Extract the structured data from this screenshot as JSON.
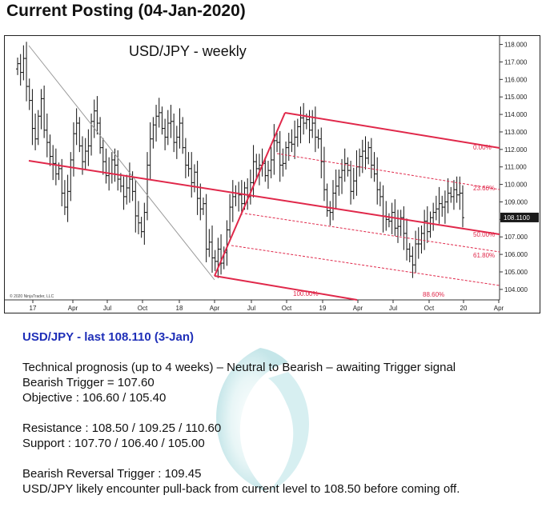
{
  "page": {
    "title": "Current Posting (04-Jan-2020)"
  },
  "chart_data": {
    "type": "ohlc",
    "title": "USD/JPY - weekly",
    "credit": "© 2020 NinjaTrader, LLC",
    "x_ticks": [
      "17",
      "Apr",
      "Jul",
      "Oct",
      "18",
      "Apr",
      "Jul",
      "Oct",
      "19",
      "Apr",
      "Jul",
      "Oct",
      "20",
      "Apr"
    ],
    "y_ticks": [
      "104.000",
      "105.000",
      "106.000",
      "107.000",
      "108.000",
      "109.000",
      "110.000",
      "111.000",
      "112.000",
      "113.000",
      "114.000",
      "115.000",
      "116.000",
      "117.000",
      "118.000"
    ],
    "ylim": [
      103.4,
      118.3
    ],
    "last_price": "108.1100",
    "last_value": 108.11,
    "fib_labels": [
      "0.00%",
      "23.60%",
      "50.00%",
      "61.80%",
      "100.00%",
      "88.60%"
    ],
    "colors": {
      "bars": "#111111",
      "pitchfork": "#e0284a",
      "price_box": "#1a1a1a"
    },
    "bars_weekly_close": [
      116.9,
      116.4,
      117.2,
      115.6,
      114.8,
      113.2,
      112.6,
      113.9,
      114.9,
      113.1,
      112.4,
      111.6,
      111.2,
      110.6,
      110.9,
      109.5,
      108.7,
      109.6,
      111.4,
      112.9,
      113.5,
      112.2,
      111.3,
      111.9,
      112.2,
      113.6,
      114.2,
      113.5,
      112.1,
      111.3,
      110.5,
      110.6,
      111.4,
      111.1,
      110.3,
      109.9,
      109.3,
      109.8,
      110.3,
      109.6,
      108.2,
      107.8,
      107.3,
      108.4,
      111.1,
      112.6,
      113.4,
      113.9,
      114.1,
      113.2,
      112.7,
      113.5,
      113.6,
      112.4,
      112.7,
      113.5,
      112.1,
      111.1,
      110.9,
      110.1,
      110.7,
      109.2,
      108.6,
      108.9,
      106.3,
      106.7,
      105.8,
      105.6,
      106.3,
      105.5,
      106.1,
      107.4,
      108.7,
      109.3,
      109.5,
      109.4,
      108.9,
      109.8,
      109.3,
      110.1,
      111.3,
      110.9,
      111.1,
      111.2,
      110.5,
      110.8,
      111.4,
      112.5,
      112.4,
      111.1,
      111.2,
      112.1,
      112.4,
      112.3,
      112.7,
      113.3,
      113.8,
      113.5,
      113.7,
      113.1,
      113.5,
      112.7,
      112.6,
      111.3,
      109.7,
      108.5,
      108.4,
      109.5,
      109.9,
      110.4,
      110.8,
      111.2,
      110.8,
      109.6,
      110.2,
      111.0,
      111.6,
      111.9,
      111.5,
      112.1,
      111.1,
      110.6,
      109.7,
      109.3,
      108.2,
      108.0,
      107.9,
      108.4,
      107.5,
      107.6,
      108.1,
      107.2,
      106.3,
      105.9,
      105.4,
      106.6,
      106.6,
      107.2,
      107.9,
      107.3,
      108.1,
      108.4,
      108.6,
      108.9,
      108.7,
      109.0,
      109.5,
      109.3,
      109.7,
      109.4,
      109.5,
      108.1
    ]
  },
  "commentary": {
    "headline": "USD/JPY - last 108.110 (3-Jan)",
    "prognosis_label": "Technical prognosis (up to 4 weeks)",
    "prognosis_value": " – Neutral to Bearish – awaiting Trigger signal",
    "bearish_trigger": "Bearish Trigger = 107.60",
    "objective_label": "Objective",
    "objective_value": " : 106.60 / 105.40",
    "resistance": "Resistance : 108.50 / 109.25 / 110.60",
    "support": "Support : 107.70 / 106.40 / 105.00",
    "reversal_trigger": "Bearish Reversal Trigger : 109.45",
    "outlook": "USD/JPY likely encounter pull-back from current level to 108.50 before coming off."
  }
}
